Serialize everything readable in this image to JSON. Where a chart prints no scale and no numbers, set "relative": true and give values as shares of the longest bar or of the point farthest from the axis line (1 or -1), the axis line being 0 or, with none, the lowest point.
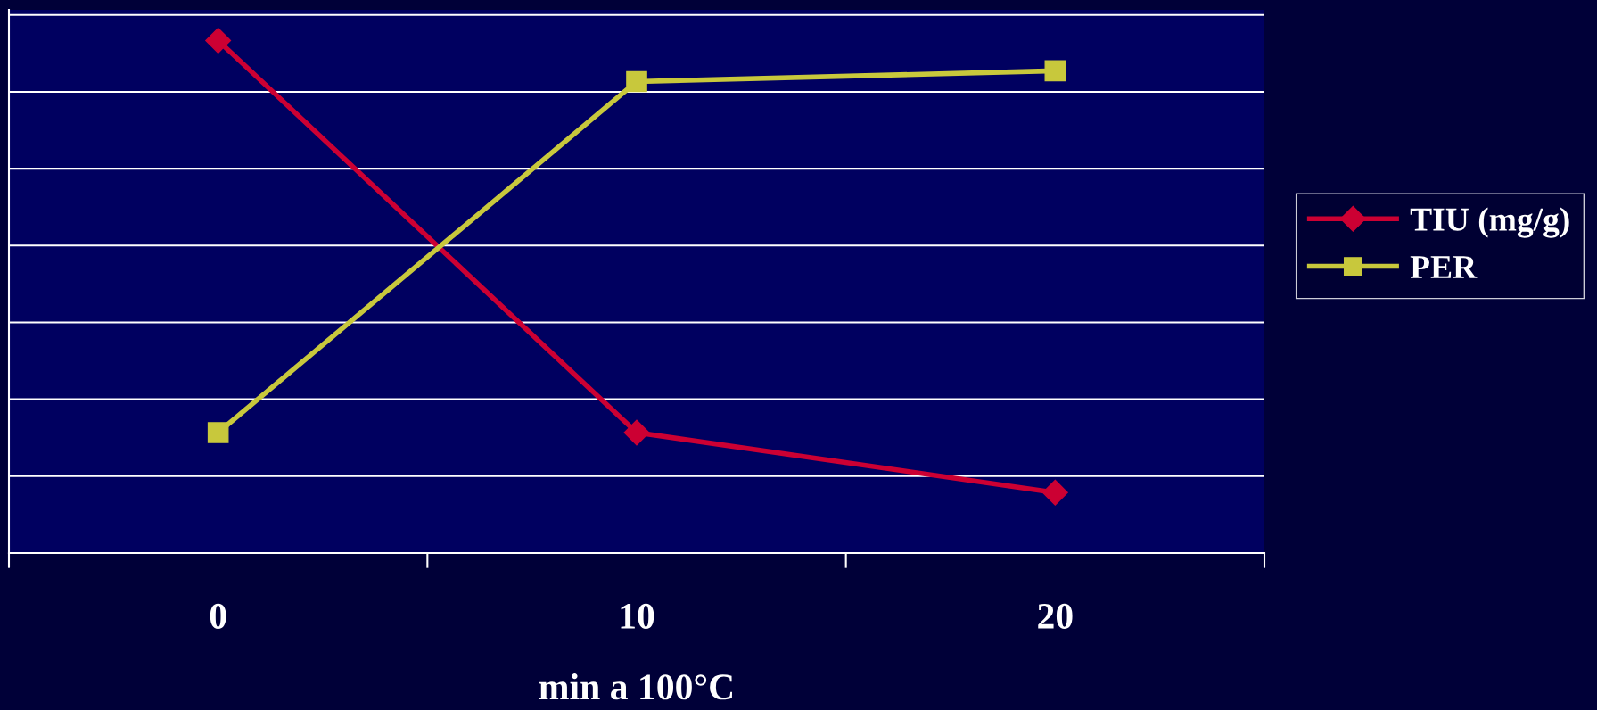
{
  "chart_data": {
    "type": "line",
    "relative": true,
    "xlabel": "min a 100°C",
    "categories": [
      "0",
      "10",
      "20"
    ],
    "series": [
      {
        "name": "TIU (mg/g)",
        "color": "#cc0033",
        "marker": "diamond",
        "values": [
          1,
          0.235,
          0.118
        ]
      },
      {
        "name": "PER",
        "color": "#c8c83c",
        "marker": "square",
        "values": [
          0.235,
          0.92,
          0.941
        ]
      }
    ],
    "grid": "y",
    "legend": "right"
  }
}
